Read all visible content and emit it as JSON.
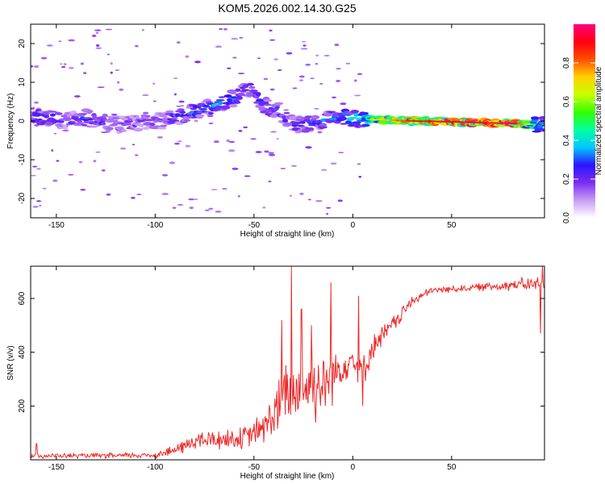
{
  "figure": {
    "title": "KOM5.2026.002.14.30.G25"
  },
  "chart_data": [
    {
      "type": "heatmap",
      "title": "KOM5.2026.002.14.30.G25",
      "xlabel": "Height of straight line (km)",
      "ylabel": "Frequency (Hz)",
      "xlim": [
        -163,
        97
      ],
      "ylim": [
        -25,
        25
      ],
      "x_ticks": [
        -150,
        -100,
        -50,
        0,
        50
      ],
      "x_tick_labels": [
        "-150",
        "-100",
        "-50",
        "0",
        "50"
      ],
      "y_ticks": [
        -20,
        -10,
        0,
        10,
        20
      ],
      "y_tick_labels": [
        "-20",
        "-10",
        "0",
        "10",
        "20"
      ],
      "colorbar": {
        "label": "Normalized spectral amplitude",
        "range": [
          0,
          1
        ],
        "ticks": [
          0.0,
          0.2,
          0.4,
          0.6,
          0.8
        ],
        "tick_labels": [
          "0.0",
          "0.2",
          "0.4",
          "0.6",
          "0.8"
        ],
        "colors": [
          "#ffffff",
          "#c89cf4",
          "#7a2cf2",
          "#2a16ff",
          "#00c8ff",
          "#00ffa0",
          "#33ff00",
          "#c8ff00",
          "#ffd000",
          "#ff5000",
          "#ff0010",
          "#ff0080"
        ]
      },
      "ridge": [
        {
          "x": -163,
          "f": 1.5,
          "a": 0.24
        },
        {
          "x": -155,
          "f": 1.0,
          "a": 0.28
        },
        {
          "x": -145,
          "f": 0.0,
          "a": 0.22
        },
        {
          "x": -135,
          "f": 0.8,
          "a": 0.26
        },
        {
          "x": -125,
          "f": -0.5,
          "a": 0.22
        },
        {
          "x": -115,
          "f": -1.0,
          "a": 0.22
        },
        {
          "x": -105,
          "f": 0.0,
          "a": 0.18
        },
        {
          "x": -97,
          "f": 0.0,
          "a": 0.18
        },
        {
          "x": -90,
          "f": 1.0,
          "a": 0.25
        },
        {
          "x": -80,
          "f": 2.5,
          "a": 0.3
        },
        {
          "x": -70,
          "f": 4.0,
          "a": 0.32
        },
        {
          "x": -60,
          "f": 6.0,
          "a": 0.3
        },
        {
          "x": -52,
          "f": 8.5,
          "a": 0.22
        },
        {
          "x": -45,
          "f": 4.0,
          "a": 0.3
        },
        {
          "x": -38,
          "f": 3.0,
          "a": 0.28
        },
        {
          "x": -30,
          "f": -1.0,
          "a": 0.25
        },
        {
          "x": -20,
          "f": -0.5,
          "a": 0.28
        },
        {
          "x": -12,
          "f": 0.5,
          "a": 0.3
        },
        {
          "x": -5,
          "f": 1.0,
          "a": 0.35
        },
        {
          "x": 5,
          "f": 0.5,
          "a": 0.45
        },
        {
          "x": 15,
          "f": 0.3,
          "a": 0.62
        },
        {
          "x": 30,
          "f": 0.0,
          "a": 0.8
        },
        {
          "x": 50,
          "f": -0.2,
          "a": 0.85
        },
        {
          "x": 70,
          "f": -0.5,
          "a": 0.88
        },
        {
          "x": 80,
          "f": -0.6,
          "a": 0.92
        },
        {
          "x": 88,
          "f": -0.8,
          "a": 0.6
        },
        {
          "x": 97,
          "f": -1.0,
          "a": 0.35
        }
      ]
    },
    {
      "type": "line",
      "xlabel": "Height of straight line (km)",
      "ylabel": "SNR (v/v)",
      "xlim": [
        -163,
        97
      ],
      "ylim": [
        0,
        720
      ],
      "x_ticks": [
        -150,
        -100,
        -50,
        0,
        50
      ],
      "x_tick_labels": [
        "-150",
        "-100",
        "-50",
        "0",
        "50"
      ],
      "y_ticks": [
        200,
        400,
        600
      ],
      "y_tick_labels": [
        "200",
        "400",
        "600"
      ],
      "color": "#ee2a2a",
      "series": [
        {
          "name": "SNR",
          "envelope": [
            {
              "x": -163,
              "mean": 15,
              "noise": 10
            },
            {
              "x": -120,
              "mean": 15,
              "noise": 12
            },
            {
              "x": -100,
              "mean": 18,
              "noise": 14
            },
            {
              "x": -90,
              "mean": 35,
              "noise": 25
            },
            {
              "x": -80,
              "mean": 70,
              "noise": 40
            },
            {
              "x": -70,
              "mean": 75,
              "noise": 45
            },
            {
              "x": -55,
              "mean": 80,
              "noise": 50
            },
            {
              "x": -45,
              "mean": 120,
              "noise": 70
            },
            {
              "x": -35,
              "mean": 220,
              "noise": 150
            },
            {
              "x": -25,
              "mean": 270,
              "noise": 160
            },
            {
              "x": -15,
              "mean": 280,
              "noise": 150
            },
            {
              "x": -8,
              "mean": 330,
              "noise": 100
            },
            {
              "x": 0,
              "mean": 380,
              "noise": 60
            },
            {
              "x": 5,
              "mean": 320,
              "noise": 70
            },
            {
              "x": 10,
              "mean": 420,
              "noise": 55
            },
            {
              "x": 20,
              "mean": 500,
              "noise": 40
            },
            {
              "x": 30,
              "mean": 590,
              "noise": 25
            },
            {
              "x": 40,
              "mean": 630,
              "noise": 15
            },
            {
              "x": 60,
              "mean": 640,
              "noise": 15
            },
            {
              "x": 80,
              "mean": 650,
              "noise": 25
            },
            {
              "x": 97,
              "mean": 655,
              "noise": 35
            }
          ],
          "spikes": [
            {
              "x": -160,
              "y": 60
            },
            {
              "x": -36,
              "y": 520
            },
            {
              "x": -31,
              "y": 720
            },
            {
              "x": -26,
              "y": 560
            },
            {
              "x": -21,
              "y": 500
            },
            {
              "x": -11,
              "y": 660
            },
            {
              "x": -2,
              "y": 350
            },
            {
              "x": 3,
              "y": 610
            },
            {
              "x": 5,
              "y": 200
            },
            {
              "x": 96,
              "y": 720
            },
            {
              "x": 95,
              "y": 470
            }
          ]
        }
      ]
    }
  ]
}
